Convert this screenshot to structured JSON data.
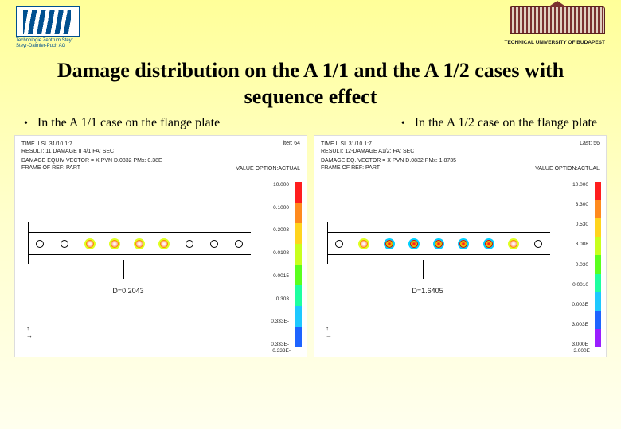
{
  "header": {
    "logo_left_line1": "Technologie Zentrum Steyr",
    "logo_left_line2": "Steyr-Daimler-Puch AG",
    "logo_right_text": "TECHNICAL UNIVERSITY OF BUDAPEST"
  },
  "title": "Damage distribution on the A 1/1 and the A 1/2 cases with sequence effect",
  "subtitles": {
    "left": "In the A 1/1 case on the flange plate",
    "right": "In the A 1/2 case on the flange plate"
  },
  "panel_left": {
    "line1": "TIME II SL 31/10 1:7",
    "line2": "RESULT: 11 DAMAGE II 4/1 FA: SEC",
    "line3": "DAMAGE EQUIV VECTOR = X PVN D.0832 PMx: 0.38E",
    "line4": "FRAME OF REF: PART",
    "right_label": "iter: 64",
    "scale_label": "VALUE OPTION:ACTUAL",
    "d_value": "D=0.2043",
    "axis_xyz": "y x",
    "colorbar": {
      "max_label": "10.000",
      "ticks": [
        "10.000",
        "0.1000",
        "0.3003",
        "0.0108",
        "0.0015",
        "0.303",
        "0.333E-",
        "0.333E-"
      ],
      "segments": [
        {
          "color": "#ff1e1e",
          "h": 12
        },
        {
          "color": "#ff8a1e",
          "h": 12
        },
        {
          "color": "#ffd41e",
          "h": 12
        },
        {
          "color": "#c8ff1e",
          "h": 12
        },
        {
          "color": "#5aff1e",
          "h": 12
        },
        {
          "color": "#1effa0",
          "h": 12
        },
        {
          "color": "#1ec8ff",
          "h": 12
        },
        {
          "color": "#1e64ff",
          "h": 12
        }
      ]
    },
    "holes": [
      "plain",
      "plain",
      "hot1",
      "hot1",
      "hot1",
      "hot1",
      "plain",
      "plain",
      "plain"
    ]
  },
  "panel_right": {
    "line1": "TIME II SL 31/10 1:7",
    "line2": "RESULT: 12-DAMAGE A1/2: FA: SEC",
    "line3": "DAMAGE EQ. VECTOR = X PVN D.0832 PMx: 1.8735",
    "line4": "FRAME OF REF: PART",
    "right_label": "Last: 56",
    "scale_label": "VALUE OPTION:ACTUAL",
    "d_value": "D=1.6405",
    "axis_xyz": "y x",
    "colorbar": {
      "max_label": "10.000",
      "ticks": [
        "10.000",
        "3.300",
        "0.530",
        "3.008",
        "0.030",
        "0.0010",
        "0.003E",
        "3.003E",
        "3.000E"
      ],
      "segments": [
        {
          "color": "#ff1e1e",
          "h": 11
        },
        {
          "color": "#ff8a1e",
          "h": 11
        },
        {
          "color": "#ffd41e",
          "h": 11
        },
        {
          "color": "#c8ff1e",
          "h": 11
        },
        {
          "color": "#5aff1e",
          "h": 11
        },
        {
          "color": "#1effa0",
          "h": 11
        },
        {
          "color": "#1ec8ff",
          "h": 11
        },
        {
          "color": "#1e64ff",
          "h": 11
        },
        {
          "color": "#9a1eff",
          "h": 11
        }
      ]
    },
    "holes": [
      "plain",
      "hot1",
      "hot2",
      "hot2",
      "hot2",
      "hot2",
      "hot2",
      "hot1",
      "plain"
    ]
  }
}
